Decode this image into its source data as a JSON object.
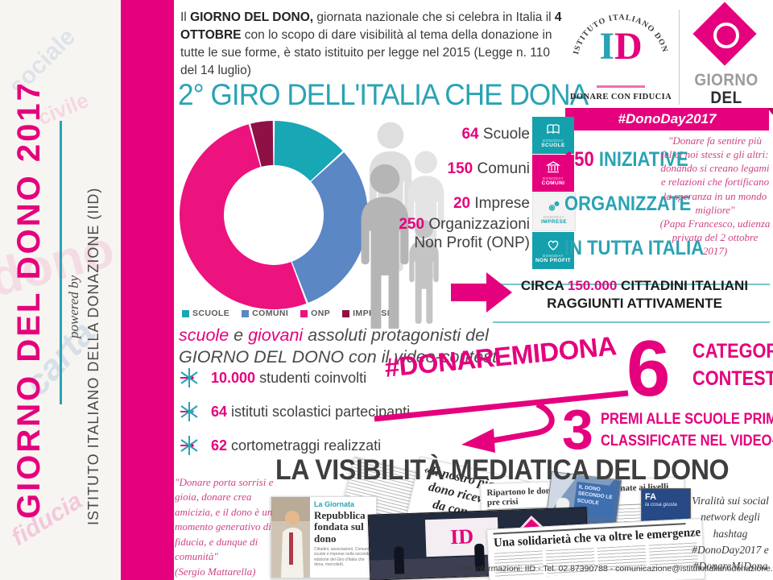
{
  "colors": {
    "magenta": "#e5007d",
    "teal": "#2aa3b4",
    "blue": "#5b87c5",
    "maroon": "#8e1045",
    "dark_text": "#3a3a3a"
  },
  "sidebar": {
    "title": "GIORNO DEL DONO 2017",
    "powered_by": "powered by",
    "organization": "ISTITUTO ITALIANO DELLA DONAZIONE (IID)",
    "watermarks": [
      "dono",
      "carta",
      "sociale",
      "civile",
      "fiducia"
    ]
  },
  "intro": {
    "seg1": "Il ",
    "bold1": "GIORNO DEL DONO,",
    "seg2": " giornata nazionale che si celebra in Italia il ",
    "bold2": "4 OTTOBRE",
    "seg3": " con lo scopo di dare visibilità al tema della donazione in tutte le sue forme, è stato istituito per legge nel 2015 (Legge n. 110 del 14 luglio)"
  },
  "main_heading": "2° GIRO DELL'ITALIA CHE DONA",
  "logos": {
    "id": {
      "arc_text": "ISTITUTO ITALIANO DONAZIONE",
      "letter_i": "I",
      "letter_d": "D",
      "tagline": "DONARE CON FIDUCIA"
    },
    "giorno": {
      "line1": "GIORNO",
      "line2": "DEL DONO"
    },
    "ribbon": "#DonoDay2017"
  },
  "chart_data": {
    "type": "pie",
    "subtype": "donut",
    "categories": [
      "SCUOLE",
      "COMUNI",
      "ONP",
      "IMPRESE"
    ],
    "values": [
      64,
      150,
      250,
      20
    ],
    "percentages": [
      13.2,
      31.0,
      51.7,
      4.1
    ],
    "colors": [
      "#18a7b5",
      "#5b87c5",
      "#ec137e",
      "#8e1045"
    ],
    "start_angle_deg": -90,
    "direction": "clockwise",
    "legend_position": "bottom"
  },
  "stats": {
    "rows": [
      {
        "value": "64",
        "label": "Scuole"
      },
      {
        "value": "150",
        "label": "Comuni"
      },
      {
        "value": "20",
        "label": "Imprese"
      },
      {
        "value": "250",
        "label": "Organizzazioni",
        "label2": "Non Profit (ONP)"
      }
    ]
  },
  "badges": [
    {
      "small": "DONODAY",
      "label": "SCUOLE",
      "icon": "book-icon"
    },
    {
      "small": "DONODAY",
      "label": "COMUNI",
      "icon": "bank-icon"
    },
    {
      "small": "DONODAY",
      "label": "IMPRESE",
      "icon": "gears-icon"
    },
    {
      "small": "DONODAY",
      "label": "NON PROFIT",
      "icon": "heart-icon"
    }
  ],
  "initiatives": {
    "value": "150",
    "word1": "INIZIATIVE",
    "line2": "ORGANIZZATE",
    "line3": "IN TUTTA ITALIA"
  },
  "pope_quote": {
    "text": "\"Donare fa sentire più felici noi stessi e gli altri: donando si creano legami e relazioni che fortificano la speranza in un mondo migliore\"",
    "attribution": "(Papa Francesco, udienza privata del 2 ottobre 2017)"
  },
  "reach": {
    "prefix": "CIRCA ",
    "value": "150.000",
    "suffix": " CITTADINI ITALIANI",
    "line2": "RAGGIUNTI ATTIVAMENTE"
  },
  "protagonists": {
    "hl1": "scuole",
    "mid1": " e ",
    "hl2": "giovani",
    "rest": " assoluti protagonisti del",
    "line2": "GIORNO DEL DONO con il video-contest"
  },
  "student_stats": [
    {
      "value": "10.000",
      "label": "studenti coinvolti"
    },
    {
      "value": "64",
      "label": "istituti scolastici partecipanti"
    },
    {
      "value": "62",
      "label": "cortometraggi realizzati"
    }
  ],
  "hashtag_banner": "#DONAREMIDONA",
  "contest": {
    "categories_value": "6",
    "categories_l1": "CATEGORIE",
    "categories_l2": "CONTEST",
    "prizes_value": "3",
    "prizes_l1": "PREMI ALLE SCUOLE PRIME",
    "prizes_l2": "CLASSIFICATE NEL VIDEO-CONTEST"
  },
  "media_title": "LA VISIBILITÀ MEDIATICA DEL DONO",
  "mattarella_quote": {
    "text": "\"Donare porta sorrisi e gioia, donare crea amicizia, e il dono è un momento generativo di fiducia, e dunque di comunità\"",
    "attribution": "(Sergio Mattarella)"
  },
  "collage": {
    "clipping_rotated": {
      "line1": "«Il nostro pian",
      "line2": "dono ricev",
      "line3": "da con"
    },
    "la_giornata": {
      "kicker": "La Giornata",
      "headline": "Repubblica fondata sul dono",
      "body": "Cittadini, associazioni, Comuni, scuole e imprese nella seconda edizione del Giro d'Italia che dona, mercoledì."
    },
    "tv_studio_id": "ID",
    "donations_headline": "Ripartono le donazioni nel 2016 tornate ai livelli pre crisi",
    "solidarity_headline": "Una solidarietà che va oltre le emergenze",
    "tv_schools": "IL DONO SECONDO LE SCUOLE",
    "tv_fa_line1": "FA",
    "tv_fa_line2": "la cosa giusta"
  },
  "social_note": "Viralità sui social network degli hashtag #DonoDay2017 e #DonareMiDona",
  "footer": "Per informazioni: IID - Tel. 02.87390788 - comunicazione@istitutoitalianodonazione.it"
}
